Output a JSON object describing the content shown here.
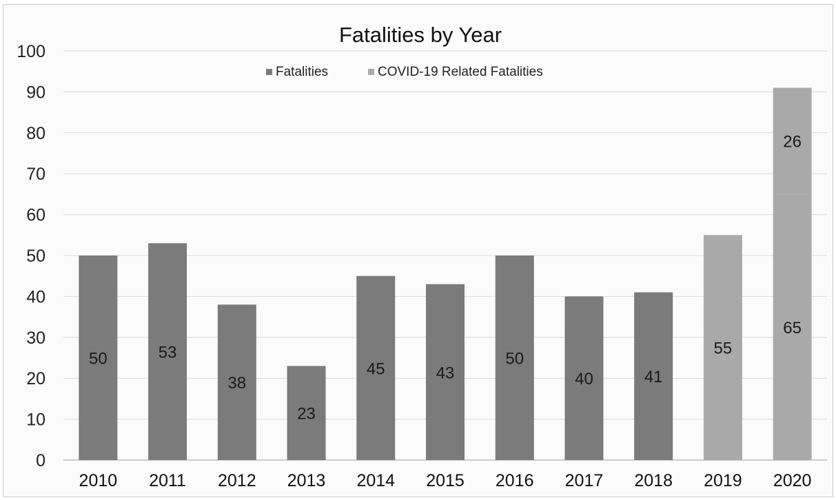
{
  "chart_data": {
    "type": "bar",
    "stacked": true,
    "title": "Fatalities by Year",
    "xlabel": "",
    "ylabel": "",
    "categories": [
      "2010",
      "2011",
      "2012",
      "2013",
      "2014",
      "2015",
      "2016",
      "2017",
      "2018",
      "2019",
      "2020"
    ],
    "series": [
      {
        "name": "Fatalities",
        "color": "#7b7b7b",
        "values": [
          50,
          53,
          38,
          23,
          45,
          43,
          50,
          40,
          41,
          null,
          null
        ]
      },
      {
        "name": "COVID-19 Related Fatalities",
        "color": "#a9a9a9",
        "values": [
          null,
          null,
          null,
          null,
          null,
          null,
          null,
          null,
          null,
          55,
          65
        ]
      },
      {
        "name": "",
        "color": "#a9a9a9",
        "values": [
          null,
          null,
          null,
          null,
          null,
          null,
          null,
          null,
          null,
          null,
          26
        ]
      }
    ],
    "data_labels": [
      "50",
      "53",
      "38",
      "23",
      "45",
      "43",
      "50",
      "40",
      "41",
      "55",
      "65",
      "26"
    ],
    "ylim": [
      0,
      100
    ],
    "yticks": [
      0,
      10,
      20,
      30,
      40,
      50,
      60,
      70,
      80,
      90,
      100
    ],
    "grid": true,
    "legend_position": "top-center"
  }
}
